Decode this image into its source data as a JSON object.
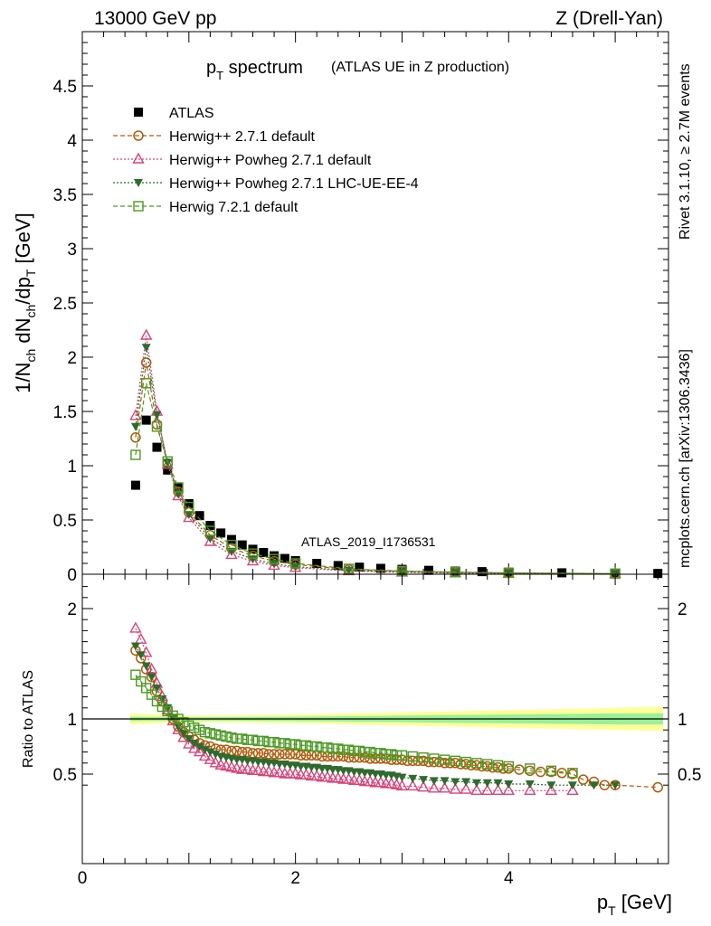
{
  "header": {
    "left": "13000 GeV pp",
    "right": "Z (Drell-Yan)"
  },
  "side_labels": {
    "top": "Rivet 3.1.10, ≥ 2.7M events",
    "bottom": "mcplots.cern.ch [arXiv:1306.3436]"
  },
  "chart_data": [
    {
      "type": "scatter",
      "panel": "main",
      "title_main": "p",
      "title_sub": "T",
      "title_rest": " spectrum",
      "title_note": "(ATLAS UE in Z production)",
      "watermark": "ATLAS_2019_I1736531",
      "ylabel": "1/N_ch dN_ch/dp_T [GeV]",
      "xlim": [
        0,
        5.5
      ],
      "ylim": [
        0,
        5.0
      ],
      "yticks": [
        "0",
        "0.5",
        "1",
        "1.5",
        "2",
        "2.5",
        "3",
        "3.5",
        "4",
        "4.5"
      ],
      "series": [
        {
          "name": "ATLAS",
          "color": "#000000",
          "marker": "square-filled",
          "x": [
            0.5,
            0.6,
            0.7,
            0.8,
            0.9,
            1.0,
            1.1,
            1.2,
            1.3,
            1.4,
            1.5,
            1.6,
            1.7,
            1.8,
            1.9,
            2.0,
            2.2,
            2.4,
            2.6,
            2.8,
            3.0,
            3.25,
            3.5,
            3.75,
            4.0,
            4.5,
            5.0,
            5.4
          ],
          "values": [
            0.82,
            1.42,
            1.17,
            0.96,
            0.8,
            0.65,
            0.54,
            0.45,
            0.38,
            0.32,
            0.27,
            0.23,
            0.2,
            0.17,
            0.145,
            0.125,
            0.1,
            0.08,
            0.065,
            0.054,
            0.045,
            0.036,
            0.029,
            0.024,
            0.019,
            0.013,
            0.009,
            0.007
          ]
        },
        {
          "name": "Herwig++ 2.7.1 default",
          "color": "#b05a0a",
          "marker": "circle-open",
          "line": "dashed",
          "x": [
            0.5,
            0.6,
            0.7,
            0.8,
            0.9,
            1.0,
            1.2,
            1.4,
            1.6,
            1.8,
            2.0,
            2.5,
            3.0,
            3.5,
            4.0,
            5.0
          ],
          "values": [
            1.26,
            1.95,
            1.38,
            1.02,
            0.76,
            0.57,
            0.36,
            0.24,
            0.17,
            0.12,
            0.09,
            0.045,
            0.028,
            0.018,
            0.012,
            0.005
          ]
        },
        {
          "name": "Herwig++ Powheg 2.7.1 default",
          "color": "#d6457a",
          "marker": "triangle-open",
          "line": "dotted",
          "x": [
            0.5,
            0.6,
            0.7,
            0.8,
            0.9,
            1.0,
            1.2,
            1.4,
            1.6,
            1.8,
            2.0,
            2.5,
            3.0,
            3.5,
            4.0,
            5.0
          ],
          "values": [
            1.46,
            2.2,
            1.5,
            1.01,
            0.72,
            0.52,
            0.3,
            0.18,
            0.12,
            0.08,
            0.06,
            0.03,
            0.017,
            0.01,
            0.007,
            0.003
          ]
        },
        {
          "name": "Herwig++ Powheg 2.7.1 LHC-UE-EE-4",
          "color": "#2f6a2f",
          "marker": "triangle-down-filled",
          "line": "dotted",
          "x": [
            0.5,
            0.6,
            0.7,
            0.8,
            0.9,
            1.0,
            1.2,
            1.4,
            1.6,
            1.8,
            2.0,
            2.5,
            3.0,
            3.5,
            4.0,
            5.0
          ],
          "values": [
            1.36,
            2.09,
            1.47,
            1.03,
            0.74,
            0.55,
            0.33,
            0.21,
            0.14,
            0.095,
            0.07,
            0.035,
            0.02,
            0.013,
            0.008,
            0.004
          ]
        },
        {
          "name": "Herwig 7.2.1 default",
          "color": "#4a9a22",
          "marker": "square-open",
          "line": "dashed",
          "x": [
            0.5,
            0.6,
            0.7,
            0.8,
            0.9,
            1.0,
            1.2,
            1.4,
            1.6,
            1.8,
            2.0,
            2.5,
            3.0,
            3.5,
            4.0,
            5.0
          ],
          "values": [
            1.1,
            1.76,
            1.36,
            1.04,
            0.8,
            0.62,
            0.4,
            0.27,
            0.19,
            0.14,
            0.1,
            0.05,
            0.03,
            0.02,
            0.013,
            0.006
          ]
        }
      ]
    },
    {
      "type": "line",
      "panel": "ratio",
      "ylabel": "Ratio to ATLAS",
      "xlabel_main": "p",
      "xlabel_sub": "T",
      "xlabel_rest": " [GeV]",
      "xlim": [
        0,
        5.5
      ],
      "ylim": [
        0.35,
        2.3
      ],
      "yticks": [
        "0.5",
        "1",
        "2"
      ],
      "xticks": [
        "0",
        "2",
        "4"
      ],
      "band_outer": {
        "color": "#ffff99",
        "x": [
          0.45,
          1.0,
          2.0,
          3.0,
          4.0,
          5.0,
          5.45
        ],
        "halfwidth": [
          0.05,
          0.03,
          0.04,
          0.06,
          0.08,
          0.1,
          0.11
        ]
      },
      "band_inner": {
        "color": "#99f099",
        "x": [
          0.45,
          1.0,
          2.0,
          3.0,
          4.0,
          5.0,
          5.45
        ],
        "halfwidth": [
          0.02,
          0.015,
          0.02,
          0.03,
          0.04,
          0.05,
          0.05
        ]
      },
      "series": [
        {
          "name": "Herwig++ 2.7.1 default",
          "x": [
            0.5,
            0.55,
            0.6,
            0.65,
            0.7,
            0.75,
            0.8,
            0.85,
            0.9,
            0.95,
            1.0,
            1.05,
            1.1,
            1.15,
            1.2,
            1.25,
            1.3,
            1.35,
            1.4,
            1.45,
            1.5,
            1.55,
            1.6,
            1.65,
            1.7,
            1.75,
            1.8,
            1.85,
            1.9,
            1.95,
            2.0,
            2.05,
            2.1,
            2.15,
            2.2,
            2.25,
            2.3,
            2.35,
            2.4,
            2.45,
            2.5,
            2.55,
            2.6,
            2.65,
            2.7,
            2.75,
            2.8,
            2.85,
            2.9,
            2.95,
            3.0,
            3.05,
            3.1,
            3.15,
            3.2,
            3.25,
            3.3,
            3.35,
            3.4,
            3.45,
            3.5,
            3.55,
            3.6,
            3.65,
            3.7,
            3.75,
            3.8,
            3.85,
            3.9,
            3.95,
            4.0,
            4.1,
            4.2,
            4.3,
            4.4,
            4.5,
            4.6,
            4.7,
            4.8,
            4.9,
            5.0,
            5.4
          ],
          "values": [
            1.62,
            1.55,
            1.45,
            1.38,
            1.25,
            1.16,
            1.08,
            1.0,
            0.93,
            0.88,
            0.84,
            0.81,
            0.78,
            0.76,
            0.75,
            0.73,
            0.72,
            0.72,
            0.71,
            0.71,
            0.7,
            0.7,
            0.69,
            0.69,
            0.69,
            0.68,
            0.68,
            0.68,
            0.68,
            0.68,
            0.68,
            0.67,
            0.67,
            0.67,
            0.67,
            0.66,
            0.66,
            0.66,
            0.66,
            0.66,
            0.65,
            0.65,
            0.65,
            0.65,
            0.64,
            0.64,
            0.64,
            0.64,
            0.63,
            0.63,
            0.63,
            0.62,
            0.62,
            0.62,
            0.62,
            0.61,
            0.61,
            0.61,
            0.6,
            0.6,
            0.6,
            0.59,
            0.59,
            0.58,
            0.58,
            0.57,
            0.57,
            0.56,
            0.56,
            0.55,
            0.55,
            0.54,
            0.53,
            0.52,
            0.52,
            0.51,
            0.5,
            0.45,
            0.43,
            0.4,
            0.4,
            0.38
          ]
        },
        {
          "name": "Herwig++ Powheg 2.7.1 default",
          "x": [
            0.5,
            0.55,
            0.6,
            0.65,
            0.7,
            0.75,
            0.8,
            0.85,
            0.9,
            0.95,
            1.0,
            1.05,
            1.1,
            1.15,
            1.2,
            1.25,
            1.3,
            1.35,
            1.4,
            1.45,
            1.5,
            1.55,
            1.6,
            1.65,
            1.7,
            1.75,
            1.8,
            1.85,
            1.9,
            1.95,
            2.0,
            2.05,
            2.1,
            2.15,
            2.2,
            2.25,
            2.3,
            2.35,
            2.4,
            2.45,
            2.5,
            2.55,
            2.6,
            2.65,
            2.7,
            2.75,
            2.8,
            2.85,
            2.9,
            2.95,
            3.0,
            3.1,
            3.2,
            3.3,
            3.4,
            3.5,
            3.6,
            3.7,
            3.8,
            3.9,
            4.0,
            4.2,
            4.4,
            4.6
          ],
          "values": [
            1.82,
            1.72,
            1.6,
            1.45,
            1.32,
            1.2,
            1.08,
            0.98,
            0.9,
            0.83,
            0.77,
            0.73,
            0.7,
            0.66,
            0.63,
            0.6,
            0.58,
            0.57,
            0.56,
            0.55,
            0.54,
            0.54,
            0.53,
            0.53,
            0.52,
            0.52,
            0.51,
            0.51,
            0.5,
            0.5,
            0.5,
            0.49,
            0.49,
            0.48,
            0.48,
            0.47,
            0.47,
            0.46,
            0.46,
            0.45,
            0.45,
            0.44,
            0.44,
            0.43,
            0.43,
            0.42,
            0.42,
            0.41,
            0.41,
            0.4,
            0.39,
            0.39,
            0.38,
            0.37,
            0.37,
            0.36,
            0.36,
            0.35,
            0.35,
            0.35,
            0.35,
            0.35,
            0.35,
            0.35
          ]
        },
        {
          "name": "Herwig++ Powheg 2.7.1 LHC-UE-EE-4",
          "x": [
            0.5,
            0.55,
            0.6,
            0.65,
            0.7,
            0.75,
            0.8,
            0.85,
            0.9,
            0.95,
            1.0,
            1.05,
            1.1,
            1.15,
            1.2,
            1.25,
            1.3,
            1.35,
            1.4,
            1.45,
            1.5,
            1.55,
            1.6,
            1.65,
            1.7,
            1.75,
            1.8,
            1.85,
            1.9,
            1.95,
            2.0,
            2.05,
            2.1,
            2.15,
            2.2,
            2.25,
            2.3,
            2.35,
            2.4,
            2.45,
            2.5,
            2.55,
            2.6,
            2.65,
            2.7,
            2.75,
            2.8,
            2.85,
            2.9,
            2.95,
            3.0,
            3.1,
            3.2,
            3.3,
            3.4,
            3.5,
            3.6,
            3.7,
            3.8,
            3.9,
            4.0,
            4.2,
            4.4,
            4.6,
            4.8,
            5.0
          ],
          "values": [
            1.66,
            1.58,
            1.48,
            1.38,
            1.28,
            1.18,
            1.1,
            1.01,
            0.93,
            0.87,
            0.82,
            0.78,
            0.75,
            0.72,
            0.7,
            0.68,
            0.66,
            0.65,
            0.64,
            0.63,
            0.63,
            0.62,
            0.62,
            0.61,
            0.61,
            0.6,
            0.6,
            0.59,
            0.59,
            0.58,
            0.58,
            0.57,
            0.57,
            0.56,
            0.56,
            0.55,
            0.55,
            0.54,
            0.54,
            0.53,
            0.53,
            0.52,
            0.52,
            0.51,
            0.51,
            0.5,
            0.5,
            0.49,
            0.49,
            0.48,
            0.47,
            0.46,
            0.45,
            0.44,
            0.44,
            0.43,
            0.43,
            0.42,
            0.42,
            0.42,
            0.41,
            0.41,
            0.4,
            0.4,
            0.4,
            0.4
          ]
        },
        {
          "name": "Herwig 7.2.1 default",
          "x": [
            0.5,
            0.55,
            0.6,
            0.65,
            0.7,
            0.75,
            0.8,
            0.85,
            0.9,
            0.95,
            1.0,
            1.05,
            1.1,
            1.15,
            1.2,
            1.25,
            1.3,
            1.35,
            1.4,
            1.45,
            1.5,
            1.55,
            1.6,
            1.65,
            1.7,
            1.75,
            1.8,
            1.85,
            1.9,
            1.95,
            2.0,
            2.05,
            2.1,
            2.15,
            2.2,
            2.25,
            2.3,
            2.35,
            2.4,
            2.45,
            2.5,
            2.55,
            2.6,
            2.65,
            2.7,
            2.75,
            2.8,
            2.85,
            2.9,
            2.95,
            3.0,
            3.1,
            3.2,
            3.3,
            3.4,
            3.5,
            3.6,
            3.7,
            3.8,
            3.9,
            4.0,
            4.2,
            4.4,
            4.6
          ],
          "values": [
            1.4,
            1.34,
            1.28,
            1.22,
            1.16,
            1.11,
            1.07,
            1.03,
            1.0,
            0.97,
            0.94,
            0.92,
            0.9,
            0.88,
            0.87,
            0.86,
            0.85,
            0.84,
            0.83,
            0.82,
            0.82,
            0.81,
            0.81,
            0.8,
            0.8,
            0.79,
            0.79,
            0.78,
            0.78,
            0.77,
            0.77,
            0.76,
            0.76,
            0.75,
            0.75,
            0.74,
            0.74,
            0.73,
            0.73,
            0.72,
            0.72,
            0.71,
            0.71,
            0.7,
            0.7,
            0.69,
            0.69,
            0.68,
            0.68,
            0.67,
            0.67,
            0.66,
            0.65,
            0.64,
            0.63,
            0.62,
            0.61,
            0.6,
            0.59,
            0.58,
            0.57,
            0.55,
            0.53,
            0.51
          ]
        }
      ]
    }
  ]
}
